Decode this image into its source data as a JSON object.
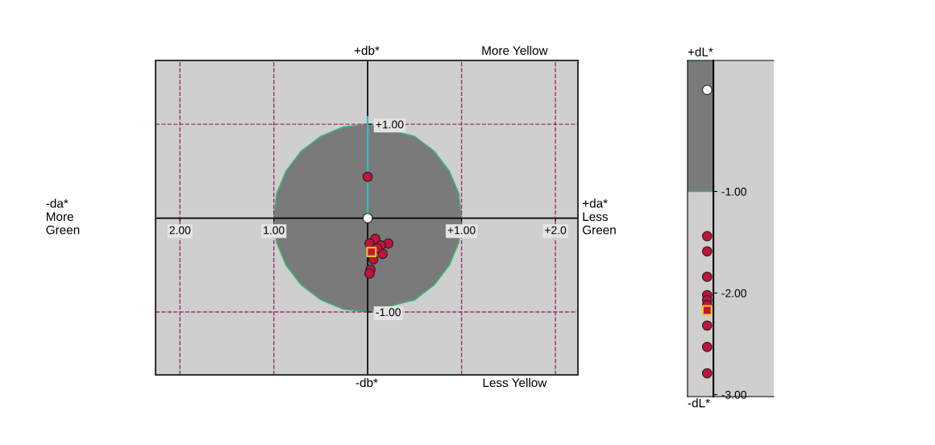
{
  "chart_data": [
    {
      "type": "scatter",
      "xlim": [
        -2.26,
        2.24
      ],
      "ylim": [
        -1.67,
        1.68
      ],
      "xticks": [
        {
          "value": -2,
          "label": "2.00"
        },
        {
          "value": -1,
          "label": "1.00"
        },
        {
          "value": 1,
          "label": "+1.00"
        },
        {
          "value": 2,
          "label": "+2.0"
        }
      ],
      "yticks": [
        {
          "value": -1,
          "label": "-1.00"
        },
        {
          "value": 1,
          "label": "+1.00"
        }
      ],
      "grid": true,
      "annotations": [
        "+db*",
        "More Yellow",
        "-db*",
        "Less Yellow",
        "-da*\nMore\nGreen",
        "+da*\nLess\nGreen"
      ],
      "series": [
        {
          "type": "area",
          "color": "#7a7a7a",
          "x": [
            1,
            0.97,
            0.87,
            0.71,
            0.5,
            0,
            -0.26,
            -0.5,
            -0.71,
            -0.87,
            -0.97,
            -1,
            -0.97,
            -0.87,
            -0.71,
            -0.5,
            -0.26,
            0,
            0.5,
            0.71,
            0.87,
            0.97
          ],
          "values": [
            0,
            0.26,
            0.5,
            0.71,
            0.87,
            1,
            0.97,
            0.87,
            0.71,
            0.5,
            0.26,
            0,
            -0.26,
            -0.5,
            -0.71,
            -0.87,
            -0.97,
            -1,
            -0.87,
            -0.71,
            -0.5,
            -0.26
          ]
        },
        {
          "type": "line",
          "color": "#33c4cc",
          "x": [
            0,
            0
          ],
          "values": [
            0,
            1.08
          ]
        },
        {
          "color": "#c0143c",
          "marker": "circle",
          "x": [
            0.0,
            0.08,
            0.22,
            0.02,
            0.14,
            0.16,
            0.06,
            0.03,
            0.02,
            0.1
          ],
          "values": [
            0.44,
            -0.22,
            -0.27,
            -0.27,
            -0.29,
            -0.38,
            -0.44,
            -0.55,
            -0.59,
            -0.32
          ]
        },
        {
          "color": "#ffffff",
          "marker": "circle",
          "x": [
            0
          ],
          "values": [
            0
          ]
        },
        {
          "color": "#c0143c",
          "marker": "square",
          "x": [
            0.04
          ],
          "values": [
            -0.36
          ]
        }
      ]
    },
    {
      "type": "scatter",
      "categories": [
        null
      ],
      "ylim": [
        -3.02,
        0.29
      ],
      "tick_labels": "y",
      "yticks": [
        {
          "value": -1,
          "label": "-1.00"
        },
        {
          "value": -2,
          "label": "-2.00"
        },
        {
          "value": -3,
          "label": "-3.00"
        }
      ],
      "bands": [
        {
          "axis": "y",
          "from": -1,
          "to": 0.29,
          "color": "#7a7a7a"
        }
      ],
      "annotations": [
        "+dL*",
        "-dL*"
      ],
      "series": [
        {
          "color": "#c0143c",
          "marker": "circle",
          "x": [
            null,
            null,
            null,
            null,
            null,
            null,
            null,
            null,
            null
          ],
          "values": [
            -1.44,
            -1.59,
            -1.84,
            -2.02,
            -2.07,
            -2.12,
            -2.32,
            -2.53,
            -2.79
          ]
        },
        {
          "color": "#ffffff",
          "marker": "circle",
          "x": [
            null
          ],
          "values": [
            0.0
          ]
        },
        {
          "color": "#c0143c",
          "marker": "square",
          "x": [
            null
          ],
          "values": [
            -2.17
          ]
        }
      ]
    }
  ]
}
